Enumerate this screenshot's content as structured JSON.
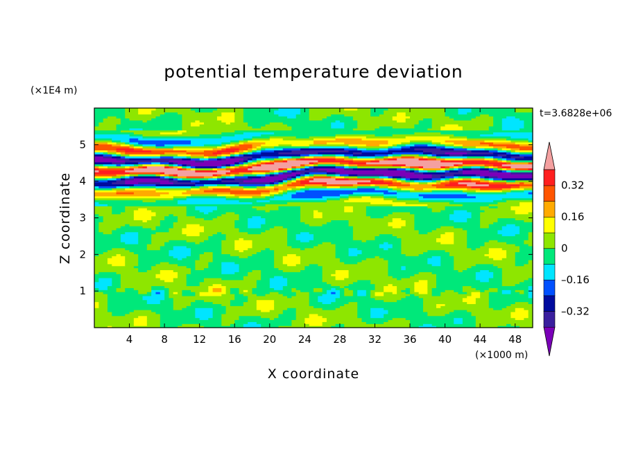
{
  "chart_data": {
    "type": "heatmap",
    "title": "potential temperature deviation",
    "xlabel": "X coordinate",
    "ylabel": "Z coordinate",
    "x_unit": "(×1000 m)",
    "y_unit": "(×1E4 m)",
    "time_label": "t=3.6828e+06",
    "xlim": [
      0,
      50
    ],
    "ylim": [
      0,
      6
    ],
    "x_ticks": [
      "4",
      "8",
      "12",
      "16",
      "20",
      "24",
      "28",
      "32",
      "36",
      "40",
      "44",
      "48"
    ],
    "x_tick_values": [
      4,
      8,
      12,
      16,
      20,
      24,
      28,
      32,
      36,
      40,
      44,
      48
    ],
    "y_ticks": [
      "1",
      "2",
      "3",
      "4",
      "5"
    ],
    "y_tick_values": [
      1,
      2,
      3,
      4,
      5
    ],
    "colorbar": {
      "labels": [
        "0.32",
        "0.16",
        "0",
        "–0.16",
        "–0.32"
      ],
      "label_values": [
        0.32,
        0.16,
        0,
        -0.16,
        -0.32
      ],
      "levels": [
        -0.4,
        -0.32,
        -0.24,
        -0.16,
        -0.08,
        0,
        0.08,
        0.16,
        0.24,
        0.32,
        0.4
      ],
      "colors": [
        "#7a00b8",
        "#3a1f9e",
        "#000b9e",
        "#0050ff",
        "#00e5ff",
        "#00e87a",
        "#8ee600",
        "#ffff00",
        "#ffaa00",
        "#ff5500",
        "#ff1f1f",
        "#f4a0a0"
      ]
    }
  }
}
